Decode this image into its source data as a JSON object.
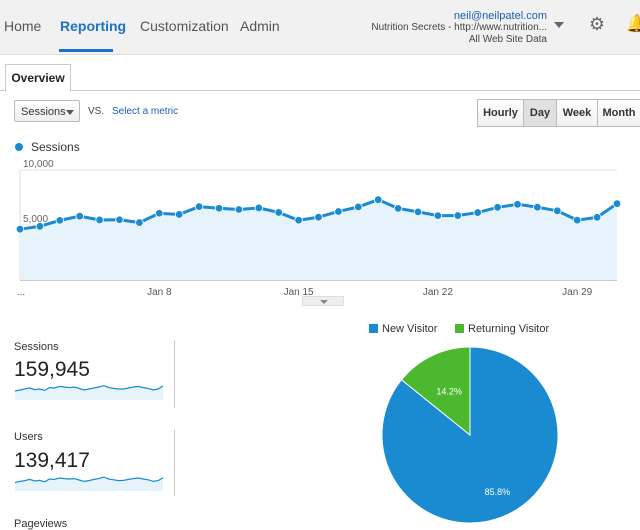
{
  "nav": {
    "items": [
      "Home",
      "Reporting",
      "Customization",
      "Admin"
    ],
    "active": "Reporting"
  },
  "account": {
    "email": "neil@neilpatel.com",
    "property": "Nutrition Secrets - http://www.nutrition...",
    "view": "All Web Site Data"
  },
  "icons": {
    "settings": "gear-icon",
    "notifications": "bell-icon",
    "account_dropdown": "chevron-down-icon"
  },
  "tabs": {
    "overview": "Overview"
  },
  "controls": {
    "metric_select": "Sessions",
    "vs_label": "VS.",
    "select_metric_link": "Select a metric",
    "time_buttons": [
      "Hourly",
      "Day",
      "Week",
      "Month"
    ],
    "active_time_button": "Day"
  },
  "colors": {
    "accent": "#1a73c8",
    "series": "#1a8bd1",
    "new_visitor": "#1a8bd1",
    "returning_visitor": "#4cb82f"
  },
  "chart_data": [
    {
      "type": "area",
      "series": [
        {
          "name": "Sessions",
          "values": [
            4620,
            4880,
            5420,
            5800,
            5460,
            5480,
            5220,
            6070,
            5960,
            6670,
            6520,
            6410,
            6550,
            6140,
            5430,
            5710,
            6230,
            6640,
            7300,
            6510,
            6190,
            5850,
            5860,
            6130,
            6610,
            6880,
            6620,
            6290,
            5440,
            5700,
            6940
          ]
        }
      ],
      "x_tick_labels": [
        "...",
        "Jan 8",
        "Jan 15",
        "Jan 22",
        "Jan 29"
      ],
      "x_tick_index": [
        0,
        7,
        14,
        21,
        28
      ],
      "y_tick_labels": [
        "10,000",
        "5,000"
      ],
      "y_ticks": [
        10000,
        5000
      ],
      "ylim": [
        0,
        10000
      ],
      "legend": "top-left"
    },
    {
      "type": "pie",
      "labels": [
        "New Visitor",
        "Returning Visitor"
      ],
      "values": [
        85.8,
        14.2
      ],
      "slice_labels": [
        "85.8%",
        "14.2%"
      ],
      "legend": "top"
    }
  ],
  "metrics": [
    {
      "label": "Sessions",
      "value": "159,945",
      "spark": [
        0.45,
        0.5,
        0.55,
        0.6,
        0.52,
        0.55,
        0.48,
        0.62,
        0.6,
        0.68,
        0.65,
        0.62,
        0.65,
        0.58,
        0.5,
        0.55,
        0.6,
        0.65,
        0.72,
        0.62,
        0.58,
        0.55,
        0.55,
        0.6,
        0.65,
        0.68,
        0.62,
        0.58,
        0.5,
        0.55,
        0.7
      ]
    },
    {
      "label": "Users",
      "value": "139,417",
      "spark": [
        0.42,
        0.48,
        0.52,
        0.58,
        0.5,
        0.53,
        0.46,
        0.6,
        0.58,
        0.65,
        0.62,
        0.6,
        0.62,
        0.55,
        0.48,
        0.52,
        0.58,
        0.62,
        0.7,
        0.6,
        0.56,
        0.52,
        0.53,
        0.58,
        0.62,
        0.65,
        0.6,
        0.56,
        0.48,
        0.52,
        0.66
      ]
    },
    {
      "label": "Pageviews"
    }
  ]
}
